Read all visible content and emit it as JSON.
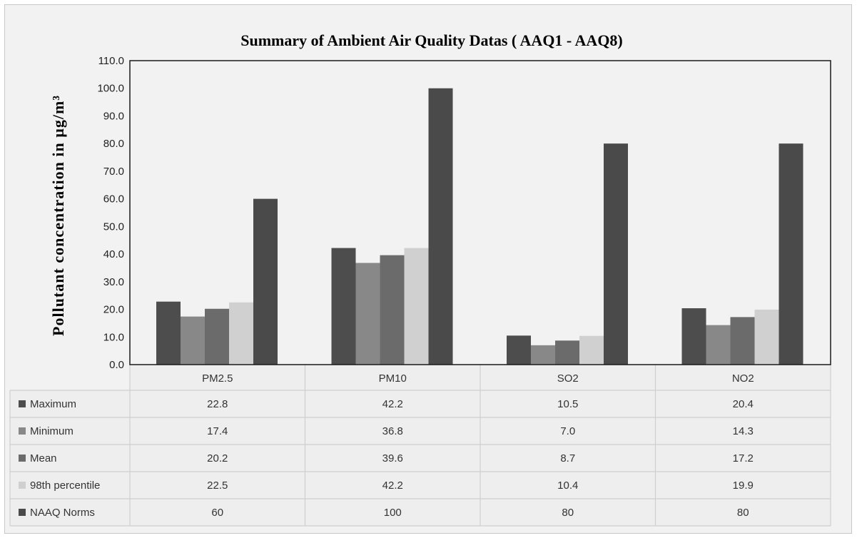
{
  "chart_data": {
    "type": "bar",
    "title": "Summary of Ambient Air Quality Datas ( AAQ1 - AAQ8)",
    "ylabel": "Pollutant  concentration  in  µg/m³",
    "ylim": [
      0,
      110
    ],
    "ytick_labels": [
      "0.0",
      "10.0",
      "20.0",
      "30.0",
      "40.0",
      "50.0",
      "60.0",
      "70.0",
      "80.0",
      "90.0",
      "100.0",
      "110.0"
    ],
    "categories": [
      "PM2.5",
      "PM10",
      "SO2",
      "NO2"
    ],
    "series": [
      {
        "name": "Maximum",
        "color": "#4d4d4d",
        "values": [
          22.8,
          42.2,
          10.5,
          20.4
        ],
        "labels": [
          "22.8",
          "42.2",
          "10.5",
          "20.4"
        ]
      },
      {
        "name": "Minimum",
        "color": "#888888",
        "values": [
          17.4,
          36.8,
          7.0,
          14.3
        ],
        "labels": [
          "17.4",
          "36.8",
          "7.0",
          "14.3"
        ]
      },
      {
        "name": "Mean",
        "color": "#6b6b6b",
        "values": [
          20.2,
          39.6,
          8.7,
          17.2
        ],
        "labels": [
          "20.2",
          "39.6",
          "8.7",
          "17.2"
        ]
      },
      {
        "name": "98th percentile",
        "color": "#d0d0d0",
        "values": [
          22.5,
          42.2,
          10.4,
          19.9
        ],
        "labels": [
          "22.5",
          "42.2",
          "10.4",
          "19.9"
        ]
      },
      {
        "name": "NAAQ Norms",
        "color": "#4a4a4a",
        "values": [
          60,
          100,
          80,
          80
        ],
        "labels": [
          "60",
          "100",
          "80",
          "80"
        ]
      }
    ],
    "grid": false,
    "legend": "data-table"
  }
}
